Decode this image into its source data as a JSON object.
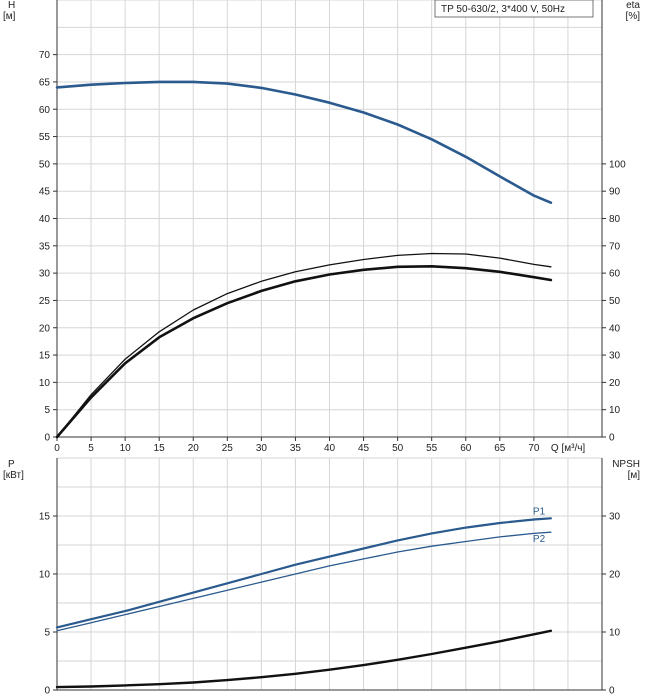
{
  "colors": {
    "head_curve": "#2a5a8e",
    "eta_curve": "#111111",
    "power_curve": "#2a5a8e",
    "npsh_curve": "#111111",
    "grid": "#d6d6d6",
    "axis": "#333333"
  },
  "chart_data": [
    {
      "type": "line",
      "legend_text": "TP 50-630/2, 3*400 V, 50Hz",
      "legend_position": "top-right",
      "grid": true,
      "xlabel": "Q [м³/ч]",
      "xlim": [
        0,
        80
      ],
      "x_ticks": [
        0,
        5,
        10,
        15,
        20,
        25,
        30,
        35,
        40,
        45,
        50,
        55,
        60,
        65,
        70
      ],
      "y_left": {
        "label_line1": "H",
        "label_line2": "[м]",
        "lim": [
          0,
          80
        ],
        "ticks": [
          0,
          5,
          10,
          15,
          20,
          25,
          30,
          35,
          40,
          45,
          50,
          55,
          60,
          65,
          70
        ]
      },
      "y_right": {
        "label_line1": "eta",
        "label_line2": "[%]",
        "lim": [
          0,
          160
        ],
        "ticks": [
          0,
          10,
          20,
          30,
          40,
          50,
          60,
          70,
          80,
          90,
          100
        ]
      },
      "series": [
        {
          "axis": "left",
          "style": "head",
          "x": [
            0,
            5,
            10,
            15,
            20,
            25,
            30,
            35,
            40,
            45,
            50,
            55,
            60,
            65,
            70,
            72.5
          ],
          "y": [
            64,
            64.5,
            64.8,
            65,
            65,
            64.7,
            63.9,
            62.7,
            61.2,
            59.4,
            57.2,
            54.5,
            51.3,
            47.7,
            44.2,
            42.9
          ]
        },
        {
          "axis": "right",
          "style": "eta-thin",
          "x": [
            0,
            5,
            10,
            15,
            20,
            25,
            30,
            35,
            40,
            45,
            50,
            55,
            60,
            65,
            70,
            72.5
          ],
          "y": [
            0,
            15.5,
            28.5,
            38.5,
            46.5,
            52.5,
            57,
            60.5,
            63,
            65,
            66.5,
            67.2,
            67,
            65.5,
            63.2,
            62.3
          ]
        },
        {
          "axis": "right",
          "style": "eta-thick",
          "x": [
            0,
            5,
            10,
            15,
            20,
            25,
            30,
            35,
            40,
            45,
            50,
            55,
            60,
            65,
            70,
            72.5
          ],
          "y": [
            0,
            14.5,
            27,
            36.5,
            43.5,
            49,
            53.5,
            57,
            59.5,
            61.2,
            62.3,
            62.5,
            61.8,
            60.5,
            58.5,
            57.5
          ]
        }
      ]
    },
    {
      "type": "line",
      "grid": true,
      "xlim": [
        0,
        80
      ],
      "y_left": {
        "label_line1": "P",
        "label_line2": "[кВт]",
        "lim": [
          0,
          20
        ],
        "ticks": [
          0,
          5,
          10,
          15
        ]
      },
      "y_right": {
        "label_line1": "NPSH",
        "label_line2": "[м]",
        "lim": [
          0,
          40
        ],
        "ticks": [
          0,
          10,
          20,
          30
        ]
      },
      "series": [
        {
          "axis": "left",
          "name": "P1",
          "style": "p1",
          "x": [
            0,
            5,
            10,
            15,
            20,
            25,
            30,
            35,
            40,
            45,
            50,
            55,
            60,
            65,
            70,
            72.5
          ],
          "y": [
            5.4,
            6.1,
            6.8,
            7.6,
            8.4,
            9.2,
            10.0,
            10.8,
            11.5,
            12.2,
            12.9,
            13.5,
            14.0,
            14.4,
            14.7,
            14.8
          ]
        },
        {
          "axis": "left",
          "name": "P2",
          "style": "p2",
          "x": [
            0,
            5,
            10,
            15,
            20,
            25,
            30,
            35,
            40,
            45,
            50,
            55,
            60,
            65,
            70,
            72.5
          ],
          "y": [
            5.1,
            5.8,
            6.5,
            7.2,
            7.9,
            8.6,
            9.3,
            10.0,
            10.7,
            11.3,
            11.9,
            12.4,
            12.8,
            13.2,
            13.5,
            13.6
          ]
        },
        {
          "axis": "right",
          "style": "npsh",
          "x": [
            0,
            5,
            10,
            15,
            20,
            25,
            30,
            35,
            40,
            45,
            50,
            55,
            60,
            65,
            70,
            72.5
          ],
          "y": [
            0.5,
            0.6,
            0.8,
            1.0,
            1.3,
            1.7,
            2.2,
            2.8,
            3.5,
            4.3,
            5.2,
            6.2,
            7.3,
            8.4,
            9.6,
            10.2
          ]
        }
      ]
    }
  ]
}
